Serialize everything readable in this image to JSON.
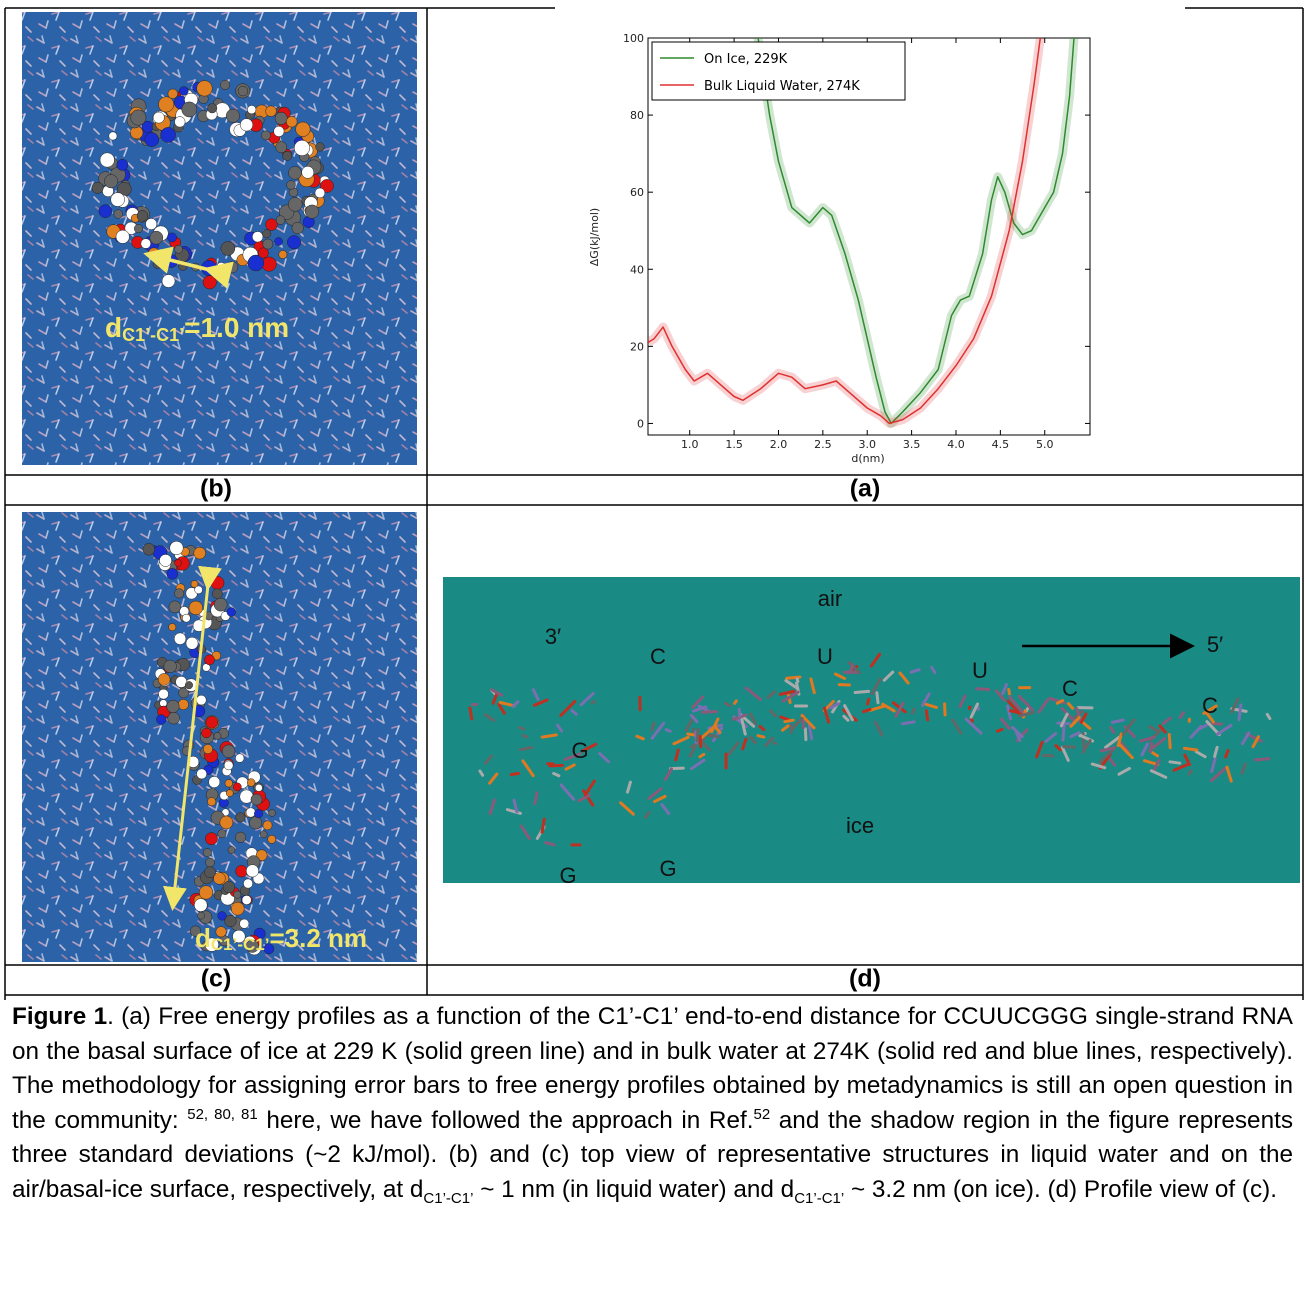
{
  "chart_data": {
    "type": "line",
    "xlabel": "d(nm)",
    "ylabel": "ΔG(kJ/mol)",
    "xlim": [
      0.53,
      5.51
    ],
    "ylim": [
      -3,
      100
    ],
    "xticks": [
      {
        "value": 1,
        "label": "1.0"
      },
      {
        "value": 1.5,
        "label": "1.5"
      },
      {
        "value": 2,
        "label": "2.0"
      },
      {
        "value": 2.5,
        "label": "2.5"
      },
      {
        "value": 3,
        "label": "3.0"
      },
      {
        "value": 3.5,
        "label": "3.5"
      },
      {
        "value": 4,
        "label": "4.0"
      },
      {
        "value": 4.5,
        "label": "4.5"
      },
      {
        "value": 5,
        "label": "5.0"
      }
    ],
    "yticks": [
      0,
      20,
      40,
      60,
      80,
      100
    ],
    "legend": "upper left",
    "series": [
      {
        "name": "On Ice, 229K",
        "color": "#2e8b2e",
        "x": [
          1.77,
          1.9,
          2.0,
          2.15,
          2.35,
          2.5,
          2.6,
          2.75,
          2.9,
          3.0,
          3.1,
          3.2,
          3.27,
          3.4,
          3.6,
          3.8,
          3.95,
          4.05,
          4.15,
          4.3,
          4.4,
          4.47,
          4.55,
          4.65,
          4.75,
          4.85,
          5.0,
          5.1,
          5.2,
          5.28,
          5.33
        ],
        "values": [
          100,
          80,
          68,
          56,
          52,
          56,
          54,
          44,
          32,
          22,
          12,
          3,
          0,
          3,
          8,
          14,
          28,
          32,
          33,
          44,
          58,
          64,
          60,
          52,
          49,
          50,
          56,
          60,
          70,
          85,
          100
        ]
      },
      {
        "name": "Bulk Liquid Water, 274K",
        "color": "#e03030",
        "x": [
          0.53,
          0.6,
          0.7,
          0.8,
          0.95,
          1.05,
          1.2,
          1.35,
          1.5,
          1.6,
          1.8,
          2.0,
          2.15,
          2.3,
          2.5,
          2.65,
          2.8,
          3.0,
          3.15,
          3.25,
          3.4,
          3.6,
          3.8,
          4.0,
          4.2,
          4.4,
          4.6,
          4.75,
          4.88,
          4.95
        ],
        "values": [
          21,
          22,
          25,
          20,
          14,
          11,
          13,
          10,
          7,
          6,
          9,
          13,
          12,
          9,
          10,
          11,
          8,
          4,
          2,
          0,
          1,
          4,
          9,
          15,
          22,
          33,
          50,
          68,
          88,
          100
        ]
      }
    ]
  },
  "panels": {
    "a": {
      "label": "(a)"
    },
    "b": {
      "label": "(b)",
      "annotation": {
        "symbol": "d",
        "subscript": "C1’-C1’",
        "text": "=1.0 nm"
      }
    },
    "c": {
      "label": "(c)",
      "annotation": {
        "symbol": "d",
        "subscript": "C1’-C1’",
        "text": "=3.2 nm"
      }
    },
    "d": {
      "label": "(d)",
      "labels": [
        "air",
        "ice",
        "3′",
        "5′",
        "C",
        "U",
        "U",
        "C",
        "C",
        "G",
        "G",
        "G"
      ]
    }
  },
  "caption": {
    "label": "Figure 1",
    "segments": [
      ". (a) Free energy profiles as a function of the C1’-C1’ end-to-end distance for CCUUCGGG single-strand RNA on the basal surface of ice at 229 K (solid green line) and in bulk water at 274K (solid red and blue lines, respectively). The methodology for assigning error bars to free energy profiles obtained by metadynamics is still an open question in the community: ",
      "52, 80, 81",
      " here, we have followed the approach in Ref.",
      "52",
      " and the shadow region in the figure represents three standard deviations (~2 kJ/mol). (b) and (c) top view of representative structures in liquid water and on the air/basal-ice surface, respectively, at d",
      "C1’-C1’",
      " ~ 1 nm (in liquid water) and d",
      "C1’-C1’",
      " ~ 3.2 nm (on ice). (d) Profile view of (c)."
    ]
  }
}
